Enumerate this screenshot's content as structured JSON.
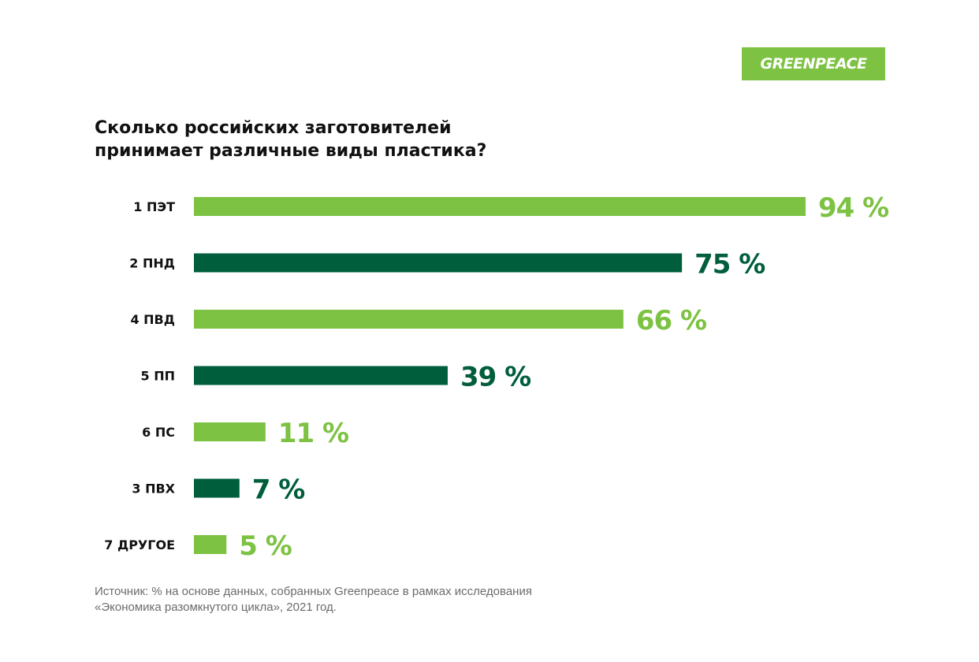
{
  "logo": {
    "text": "GREENPEACE",
    "color": "#7dc242"
  },
  "chart_data": {
    "type": "bar",
    "orientation": "horizontal",
    "title_lines": [
      "Сколько российских заготовителей",
      "принимает различные виды пластика?"
    ],
    "categories": [
      "1 ПЭТ",
      "2 ПНД",
      "4 ПВД",
      "5 ПП",
      "6 ПС",
      "3 ПВХ",
      "7 ДРУГОЕ"
    ],
    "values": [
      94,
      75,
      66,
      39,
      11,
      7,
      5
    ],
    "value_labels": [
      "94 %",
      "75 %",
      "66 %",
      "39 %",
      "11 %",
      "7 %",
      "5 %"
    ],
    "unit": "%",
    "xlim": [
      0,
      100
    ],
    "grid": false,
    "colors": [
      "#7dc242",
      "#005e3c",
      "#7dc242",
      "#005e3c",
      "#7dc242",
      "#005e3c",
      "#7dc242"
    ]
  },
  "source": {
    "lines": [
      "Источник: % на основе данных, собранных Greenpeace в рамках исследования",
      "«Экономика разомкнутого цикла», 2021 год."
    ]
  }
}
